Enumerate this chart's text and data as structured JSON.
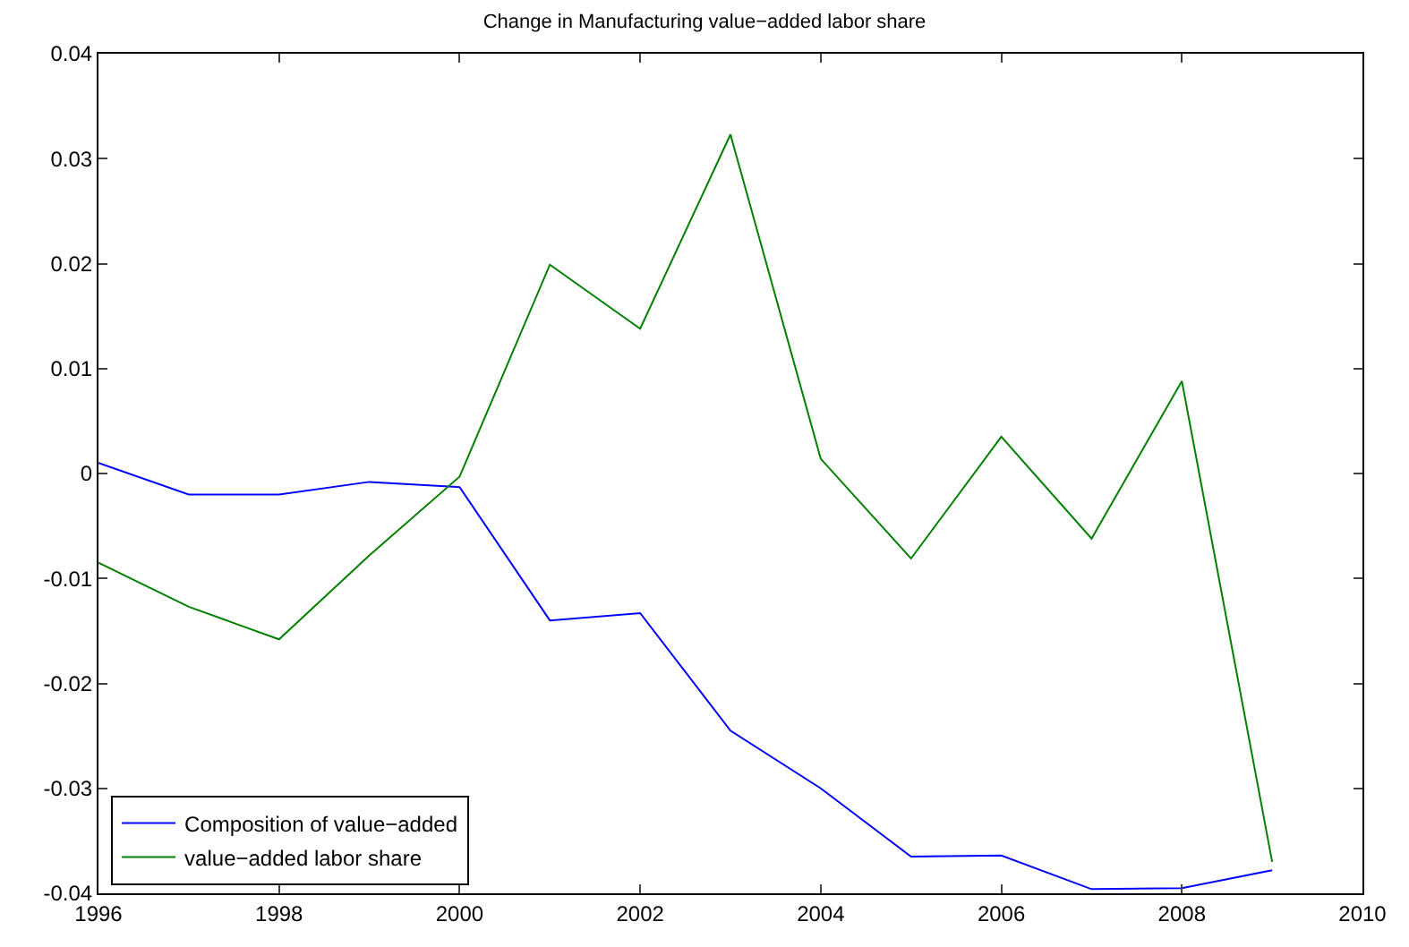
{
  "chart_data": {
    "type": "line",
    "title": "Change in Manufacturing value−added labor share",
    "x": [
      1996,
      1997,
      1998,
      1999,
      2000,
      2001,
      2002,
      2003,
      2004,
      2005,
      2006,
      2007,
      2008,
      2009
    ],
    "series": [
      {
        "name": "Composition of value−added",
        "color": "#0000ff",
        "values": [
          0.001,
          -0.002,
          -0.002,
          -0.0008,
          -0.0013,
          -0.014,
          -0.0133,
          -0.0245,
          -0.03,
          -0.0365,
          -0.0364,
          -0.0396,
          -0.0395,
          -0.0378
        ]
      },
      {
        "name": "value−added labor share",
        "color": "#008000",
        "values": [
          -0.0085,
          -0.0127,
          -0.0158,
          -0.0078,
          -0.0003,
          0.0199,
          0.0138,
          0.0323,
          0.0014,
          -0.0081,
          0.0035,
          -0.0062,
          0.0088,
          -0.037
        ]
      }
    ],
    "xlim": [
      1996,
      2010
    ],
    "xticks": [
      1996,
      1998,
      2000,
      2002,
      2004,
      2006,
      2008,
      2010
    ],
    "ylim": [
      -0.04,
      0.04
    ],
    "yticks": [
      -0.04,
      -0.03,
      -0.02,
      -0.01,
      0,
      0.01,
      0.02,
      0.03,
      0.04
    ],
    "legend": "bottom left",
    "marker": "none",
    "line_style": "solid"
  }
}
